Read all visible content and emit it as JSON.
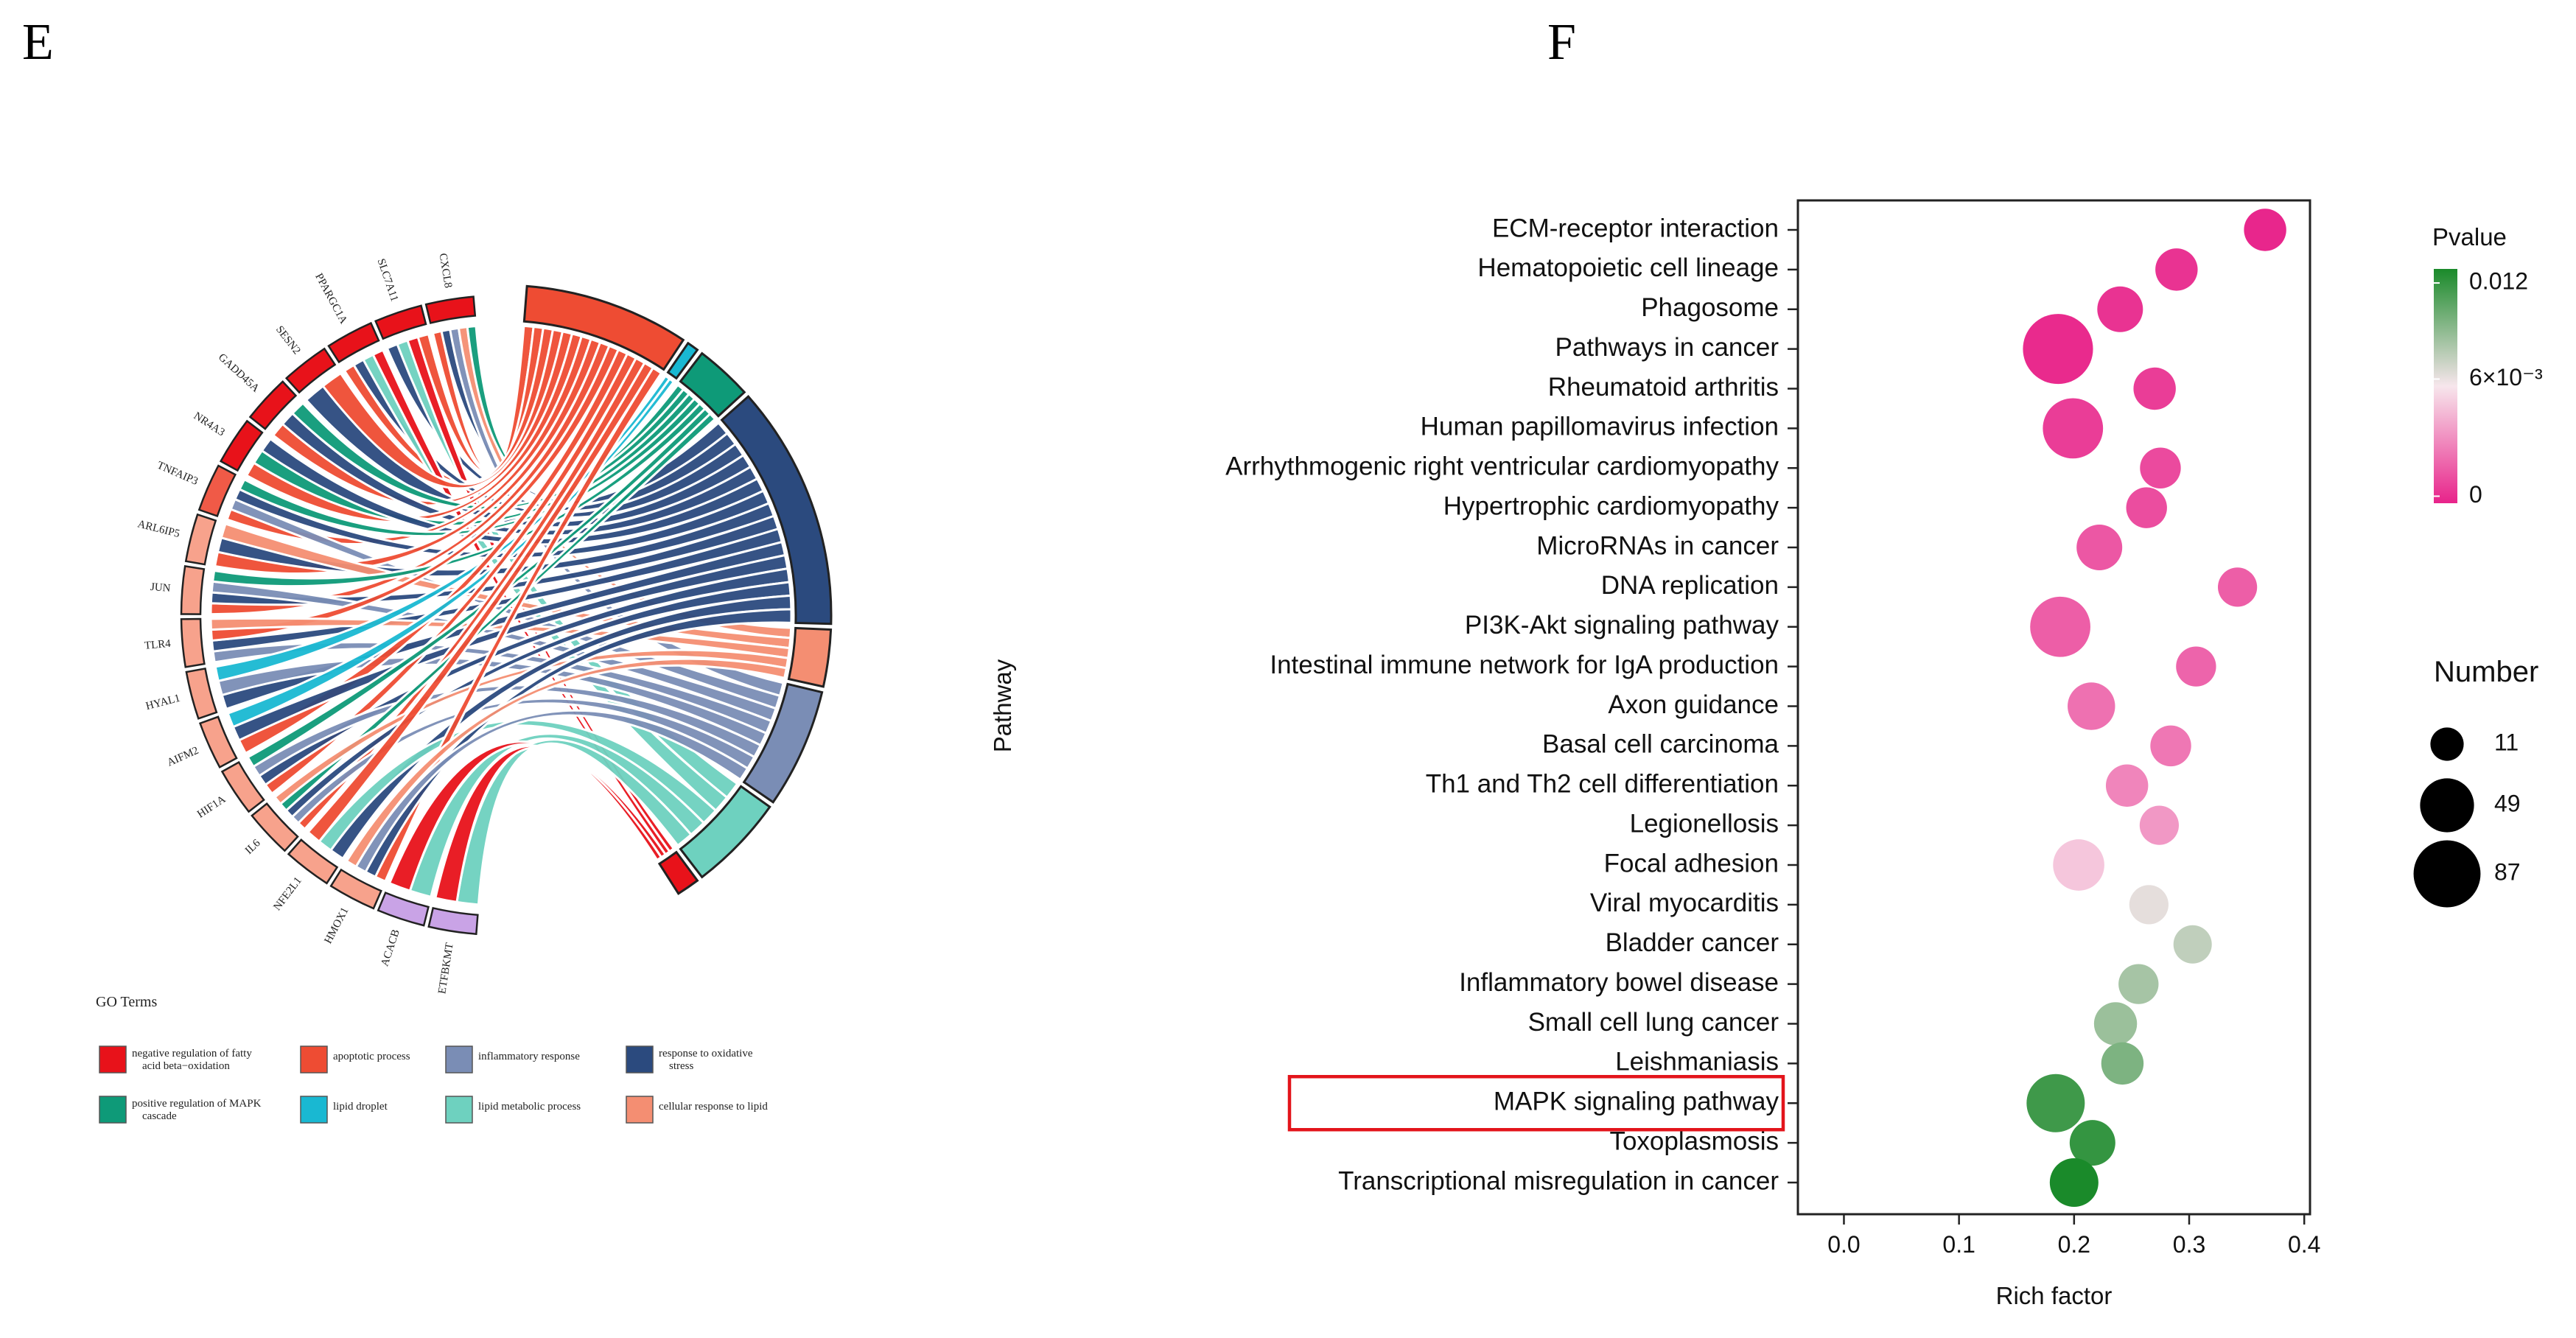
{
  "panels": {
    "left_label": "E",
    "right_label": "F"
  },
  "chart_data": [
    {
      "type": "chord",
      "title": "",
      "genes": [
        "CXCL8",
        "SLC7A11",
        "PPARGC1A",
        "SESN2",
        "GADD45A",
        "NR4A3",
        "TNFAIP3",
        "ARL6IP5",
        "JUN",
        "TLR4",
        "HYAL1",
        "AIFM2",
        "HIF1A",
        "IL6",
        "NFE2L1",
        "HMOX1",
        "ACACB",
        "ETFBKMT"
      ],
      "gene_colors": [
        "#e8121a",
        "#e8121a",
        "#e8121a",
        "#e8121a",
        "#e8121a",
        "#e8121a",
        "#f05a47",
        "#f7a28c",
        "#f7a28c",
        "#f7a28c",
        "#f7a28c",
        "#f7a28c",
        "#f7a28c",
        "#f7a28c",
        "#f7a28c",
        "#f7a28c",
        "#c9a3e6",
        "#c9a3e6"
      ],
      "terms": [
        {
          "name": "apoptotic process",
          "color": "#ee4c33"
        },
        {
          "name": "lipid droplet",
          "color": "#19b8d2"
        },
        {
          "name": "positive regulation of MAPK cascade",
          "color": "#0e9a78"
        },
        {
          "name": "response to oxidative stress",
          "color": "#2b4a7e"
        },
        {
          "name": "cellular response to lipid",
          "color": "#f48e72"
        },
        {
          "name": "inflammatory response",
          "color": "#7a8db5"
        },
        {
          "name": "lipid metabolic process",
          "color": "#6ed1bf"
        },
        {
          "name": "negative regulation of fatty acid beta−oxidation",
          "color": "#e8121a"
        }
      ],
      "legend_title": "GO Terms",
      "legend_items": [
        {
          "label": "negative regulation of fatty acid beta−oxidation",
          "color": "#e8121a"
        },
        {
          "label": "apoptotic process",
          "color": "#ee4c33"
        },
        {
          "label": "inflammatory response",
          "color": "#7a8db5"
        },
        {
          "label": "response to oxidative stress",
          "color": "#2b4a7e"
        },
        {
          "label": "positive regulation of MAPK cascade",
          "color": "#0e9a78"
        },
        {
          "label": "lipid droplet",
          "color": "#19b8d2"
        },
        {
          "label": "lipid metabolic process",
          "color": "#6ed1bf"
        },
        {
          "label": "cellular response to lipid",
          "color": "#f48e72"
        }
      ]
    },
    {
      "type": "scatter",
      "title": "",
      "xlabel": "Rich factor",
      "ylabel": "Pathway",
      "xlim": [
        -0.04,
        0.405
      ],
      "xticks": [
        0.0,
        0.1,
        0.2,
        0.3,
        0.4
      ],
      "xtick_labels": [
        "0.0",
        "0.1",
        "0.2",
        "0.3",
        "0.4"
      ],
      "pathways": [
        {
          "name": "ECM-receptor interaction",
          "rich": 0.366,
          "pvalue": 0.0001,
          "number": 15
        },
        {
          "name": "Hematopoietic cell lineage",
          "rich": 0.289,
          "pvalue": 0.0005,
          "number": 15
        },
        {
          "name": "Phagosome",
          "rich": 0.24,
          "pvalue": 0.0005,
          "number": 20
        },
        {
          "name": "Pathways in cancer",
          "rich": 0.186,
          "pvalue": 0.0002,
          "number": 78
        },
        {
          "name": "Rheumatoid arthritis",
          "rich": 0.27,
          "pvalue": 0.0008,
          "number": 15
        },
        {
          "name": "Human papillomavirus infection",
          "rich": 0.199,
          "pvalue": 0.0008,
          "number": 50
        },
        {
          "name": "Arrhythmogenic right ventricular cardiomyopathy",
          "rich": 0.275,
          "pvalue": 0.0012,
          "number": 13
        },
        {
          "name": "Hypertrophic cardiomyopathy",
          "rich": 0.263,
          "pvalue": 0.0013,
          "number": 13
        },
        {
          "name": "MicroRNAs in cancer",
          "rich": 0.222,
          "pvalue": 0.0016,
          "number": 20
        },
        {
          "name": "DNA replication",
          "rich": 0.342,
          "pvalue": 0.0018,
          "number": 11
        },
        {
          "name": "PI3K-Akt signaling pathway",
          "rich": 0.188,
          "pvalue": 0.0018,
          "number": 50
        },
        {
          "name": "Intestinal immune network for IgA production",
          "rich": 0.306,
          "pvalue": 0.002,
          "number": 12
        },
        {
          "name": "Axon guidance",
          "rich": 0.215,
          "pvalue": 0.0024,
          "number": 23
        },
        {
          "name": "Basal cell carcinoma",
          "rich": 0.284,
          "pvalue": 0.0026,
          "number": 13
        },
        {
          "name": "Th1 and Th2 cell differentiation",
          "rich": 0.246,
          "pvalue": 0.003,
          "number": 15
        },
        {
          "name": "Legionellosis",
          "rich": 0.274,
          "pvalue": 0.0036,
          "number": 11
        },
        {
          "name": "Focal adhesion",
          "rich": 0.204,
          "pvalue": 0.005,
          "number": 30
        },
        {
          "name": "Viral myocarditis",
          "rich": 0.265,
          "pvalue": 0.0065,
          "number": 11
        },
        {
          "name": "Bladder cancer",
          "rich": 0.303,
          "pvalue": 0.0075,
          "number": 10
        },
        {
          "name": "Inflammatory bowel disease",
          "rich": 0.256,
          "pvalue": 0.0082,
          "number": 12
        },
        {
          "name": "Small cell lung cancer",
          "rich": 0.236,
          "pvalue": 0.0085,
          "number": 16
        },
        {
          "name": "Leishmaniasis",
          "rich": 0.242,
          "pvalue": 0.0093,
          "number": 15
        },
        {
          "name": "MAPK signaling pathway",
          "rich": 0.184,
          "pvalue": 0.011,
          "number": 45
        },
        {
          "name": "Toxoplasmosis",
          "rich": 0.216,
          "pvalue": 0.0113,
          "number": 20
        },
        {
          "name": "Transcriptional misregulation in cancer",
          "rich": 0.2,
          "pvalue": 0.012,
          "number": 25
        }
      ],
      "highlighted": "MAPK signaling pathway",
      "colorbar": {
        "title": "Pvalue",
        "high_label": "0.012",
        "mid_label": "6×10⁻³",
        "low_label": "0",
        "min": 0,
        "max": 0.012,
        "high_color": "#1a8a2a",
        "mid_color": "#f7e6ec",
        "low_color": "#e8238a"
      },
      "size_legend": {
        "title": "Number",
        "labels": [
          "11",
          "49",
          "87"
        ],
        "values": [
          11,
          49,
          87
        ]
      }
    }
  ]
}
